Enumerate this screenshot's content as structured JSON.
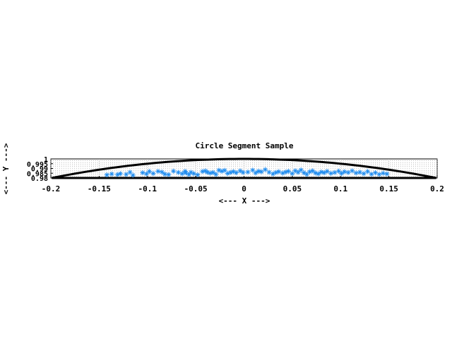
{
  "chart_data": {
    "type": "scatter",
    "title": "Circle Segment Sample",
    "xlabel": "<--- X --->",
    "ylabel": "<--- Y --->",
    "xlim": [
      -0.2,
      0.2
    ],
    "ylim": [
      0.98,
      1.0
    ],
    "x_ticks": [
      "-0.2",
      "-0.15",
      "-0.1",
      "-0.05",
      "0",
      "0.05",
      "0.1",
      "0.15",
      "0.2"
    ],
    "x_tick_values": [
      -0.2,
      -0.15,
      -0.1,
      -0.05,
      0,
      0.05,
      0.1,
      0.15,
      0.2
    ],
    "y_ticks": [
      "0.98",
      "0.985",
      "0.99",
      "0.995",
      "1"
    ],
    "y_tick_values": [
      0.98,
      0.985,
      0.99,
      0.995,
      1.0
    ],
    "grid": "dotted",
    "point_color": "#1e8cf0",
    "boundary_color": "#000000",
    "boundary": {
      "type": "circle-segment",
      "radius": 1.0,
      "chord_y": 0.98
    },
    "points": [
      [
        -0.142,
        0.9832
      ],
      [
        -0.137,
        0.9842
      ],
      [
        -0.131,
        0.9836
      ],
      [
        -0.128,
        0.9845
      ],
      [
        -0.122,
        0.9838
      ],
      [
        -0.118,
        0.986
      ],
      [
        -0.115,
        0.9829
      ],
      [
        -0.105,
        0.9855
      ],
      [
        -0.101,
        0.9843
      ],
      [
        -0.098,
        0.9868
      ],
      [
        -0.094,
        0.9847
      ],
      [
        -0.089,
        0.987
      ],
      [
        -0.085,
        0.9862
      ],
      [
        -0.082,
        0.984
      ],
      [
        -0.078,
        0.9835
      ],
      [
        -0.073,
        0.9872
      ],
      [
        -0.068,
        0.9858
      ],
      [
        -0.064,
        0.9845
      ],
      [
        -0.061,
        0.987
      ],
      [
        -0.06,
        0.9853
      ],
      [
        -0.057,
        0.9836
      ],
      [
        -0.055,
        0.986
      ],
      [
        -0.052,
        0.9846
      ],
      [
        -0.048,
        0.9833
      ],
      [
        -0.043,
        0.9868
      ],
      [
        -0.04,
        0.9875
      ],
      [
        -0.038,
        0.986
      ],
      [
        -0.035,
        0.9851
      ],
      [
        -0.032,
        0.9858
      ],
      [
        -0.029,
        0.9838
      ],
      [
        -0.026,
        0.9881
      ],
      [
        -0.023,
        0.9871
      ],
      [
        -0.02,
        0.988
      ],
      [
        -0.017,
        0.9848
      ],
      [
        -0.014,
        0.9858
      ],
      [
        -0.011,
        0.9867
      ],
      [
        -0.008,
        0.9855
      ],
      [
        -0.004,
        0.9875
      ],
      [
        -0.001,
        0.9858
      ],
      [
        0.004,
        0.9862
      ],
      [
        0.009,
        0.9882
      ],
      [
        0.012,
        0.9852
      ],
      [
        0.015,
        0.9871
      ],
      [
        0.018,
        0.9865
      ],
      [
        0.022,
        0.9888
      ],
      [
        0.026,
        0.986
      ],
      [
        0.03,
        0.9843
      ],
      [
        0.033,
        0.9858
      ],
      [
        0.036,
        0.9866
      ],
      [
        0.04,
        0.9851
      ],
      [
        0.043,
        0.9862
      ],
      [
        0.046,
        0.987
      ],
      [
        0.05,
        0.9846
      ],
      [
        0.053,
        0.9876
      ],
      [
        0.056,
        0.986
      ],
      [
        0.059,
        0.9884
      ],
      [
        0.062,
        0.9855
      ],
      [
        0.065,
        0.9838
      ],
      [
        0.068,
        0.9865
      ],
      [
        0.071,
        0.9875
      ],
      [
        0.074,
        0.9852
      ],
      [
        0.077,
        0.9843
      ],
      [
        0.08,
        0.9863
      ],
      [
        0.083,
        0.9855
      ],
      [
        0.086,
        0.987
      ],
      [
        0.09,
        0.9849
      ],
      [
        0.094,
        0.9858
      ],
      [
        0.098,
        0.9872
      ],
      [
        0.101,
        0.9847
      ],
      [
        0.104,
        0.9866
      ],
      [
        0.108,
        0.9858
      ],
      [
        0.112,
        0.9875
      ],
      [
        0.116,
        0.9852
      ],
      [
        0.12,
        0.986
      ],
      [
        0.124,
        0.9846
      ],
      [
        0.128,
        0.9868
      ],
      [
        0.132,
        0.984
      ],
      [
        0.136,
        0.9855
      ],
      [
        0.14,
        0.9838
      ],
      [
        0.144,
        0.985
      ],
      [
        0.148,
        0.9843
      ]
    ]
  }
}
